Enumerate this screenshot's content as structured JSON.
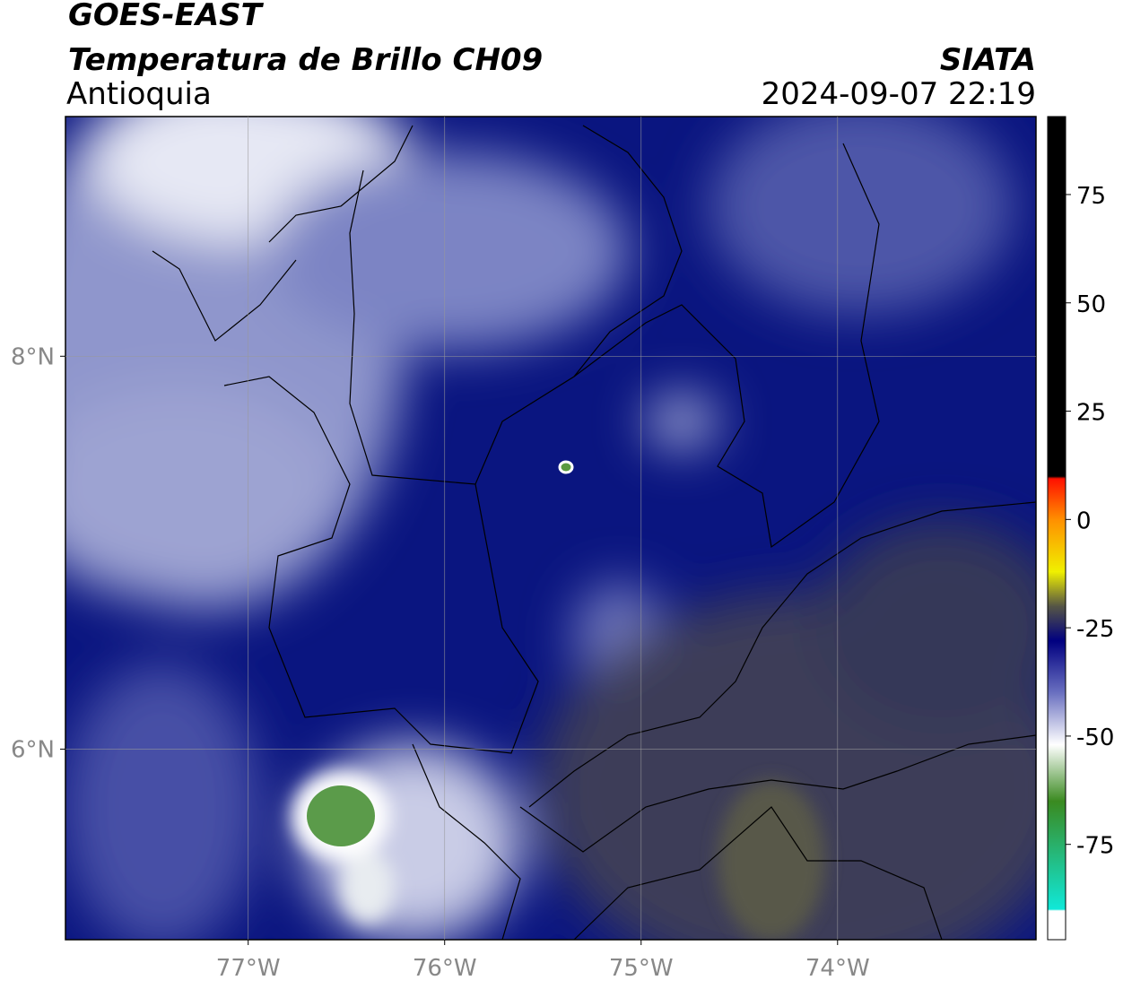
{
  "header": {
    "title": "GOES-EAST",
    "subtitle": "Temperatura de Brillo CH09",
    "region": "Antioquia",
    "source": "SIATA",
    "timestamp": "2024-09-07 22:19"
  },
  "map": {
    "lonlim": [
      -77.93,
      -72.99
    ],
    "latlim": [
      5.03,
      9.22
    ],
    "lonticks": [
      {
        "value": -77,
        "label": "77°W"
      },
      {
        "value": -76,
        "label": "76°W"
      },
      {
        "value": -75,
        "label": "75°W"
      },
      {
        "value": -74,
        "label": "74°W"
      }
    ],
    "latticks": [
      {
        "value": 8,
        "label": "8°N"
      },
      {
        "value": 6,
        "label": "6°N"
      }
    ]
  },
  "colorbar": {
    "lim": [
      -97,
      93
    ],
    "ticks": [
      75,
      50,
      25,
      0,
      -25,
      -50,
      -75
    ]
  }
}
